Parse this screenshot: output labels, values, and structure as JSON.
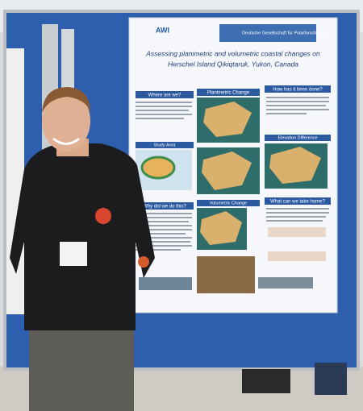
{
  "poster": {
    "title": [
      "Assessing planimetric and volumetric coastal changes on",
      "Herschel Island Qikiqtaruk, Yukon, Canada"
    ],
    "logos": [
      "AWI",
      "Deutsche Gesellschaft für Polarforschung e.V."
    ],
    "sections": [
      "Where are we?",
      "Planimetric Change",
      "How has it been done?",
      "Study Area",
      "Elevation Difference",
      "Why did we do this?",
      "Volumetric Change",
      "What can we take home?"
    ]
  }
}
